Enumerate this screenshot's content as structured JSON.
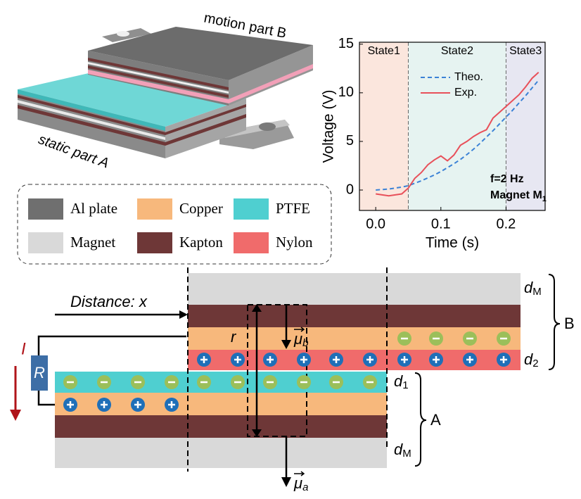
{
  "render": {
    "labels": [
      "motion part B",
      "static part A"
    ]
  },
  "legend": {
    "items": [
      {
        "label": "Al plate",
        "color": "#6f6f6f"
      },
      {
        "label": "Copper",
        "color": "#f7b87c"
      },
      {
        "label": "PTFE",
        "color": "#4fcfd0"
      },
      {
        "label": "Magnet",
        "color": "#d9d9d9"
      },
      {
        "label": "Kapton",
        "color": "#6e3737"
      },
      {
        "label": "Nylon",
        "color": "#f06b6b"
      }
    ]
  },
  "chart_data": {
    "type": "line",
    "xlabel": "Time (s)",
    "ylabel": "Voltage (V)",
    "xlim": [
      -0.025,
      0.26
    ],
    "ylim": [
      -2.1,
      15.2
    ],
    "xticks": [
      {
        "value": 0,
        "label": "0.0"
      },
      0.1,
      0.2
    ],
    "yticks": [
      0,
      5,
      10,
      15
    ],
    "regions": [
      {
        "label": "State1",
        "color": "#fbe6dd"
      },
      {
        "label": "State2",
        "color": "#e6f3f1"
      },
      {
        "label": "State3",
        "color": "#e7e7f2"
      }
    ],
    "region_bounds": [
      0.05,
      0.2
    ],
    "x": [
      0,
      0.01,
      0.02,
      0.03,
      0.04,
      0.05,
      0.06,
      0.07,
      0.08,
      0.09,
      0.1,
      0.11,
      0.12,
      0.13,
      0.14,
      0.15,
      0.16,
      0.17,
      0.18,
      0.19,
      0.2,
      0.21,
      0.22,
      0.23,
      0.24,
      0.25
    ],
    "series": [
      {
        "name": "Theo.",
        "color": "#3b82d6",
        "dash": true,
        "values": [
          0,
          0.05,
          0.1,
          0.2,
          0.3,
          0.45,
          0.7,
          0.95,
          1.25,
          1.55,
          1.9,
          2.3,
          2.7,
          3.15,
          3.65,
          4.2,
          4.8,
          5.45,
          6.1,
          6.8,
          7.5,
          8.2,
          8.95,
          9.7,
          10.5,
          11.3
        ]
      },
      {
        "name": "Exp.",
        "color": "#e8505a",
        "dash": false,
        "values": [
          -0.4,
          -0.5,
          -0.6,
          -0.5,
          -0.4,
          0.2,
          1.2,
          1.8,
          2.6,
          3.1,
          3.5,
          3.0,
          3.6,
          4.6,
          5.0,
          5.5,
          5.9,
          6.2,
          7.4,
          8.0,
          8.6,
          9.2,
          9.8,
          10.6,
          11.5,
          12.1
        ]
      }
    ],
    "annotations": [
      {
        "text": "f=2 Hz"
      },
      {
        "text": "Magnet M",
        "sub": "1"
      }
    ]
  },
  "schematic": {
    "distance": "Distance: x",
    "radius": "r",
    "resistor": "R",
    "current": "I",
    "mu_b": {
      "symbol": "μ",
      "sub": "b"
    },
    "mu_a": {
      "symbol": "μ",
      "sub": "a"
    },
    "d_top": {
      "symbol": "d",
      "sub": "M"
    },
    "d_2": {
      "symbol": "d",
      "sub": "2"
    },
    "d_1": {
      "symbol": "d",
      "sub": "1"
    },
    "d_bottom": {
      "symbol": "d",
      "sub": "M"
    },
    "part_b": "B",
    "part_a": "A"
  }
}
